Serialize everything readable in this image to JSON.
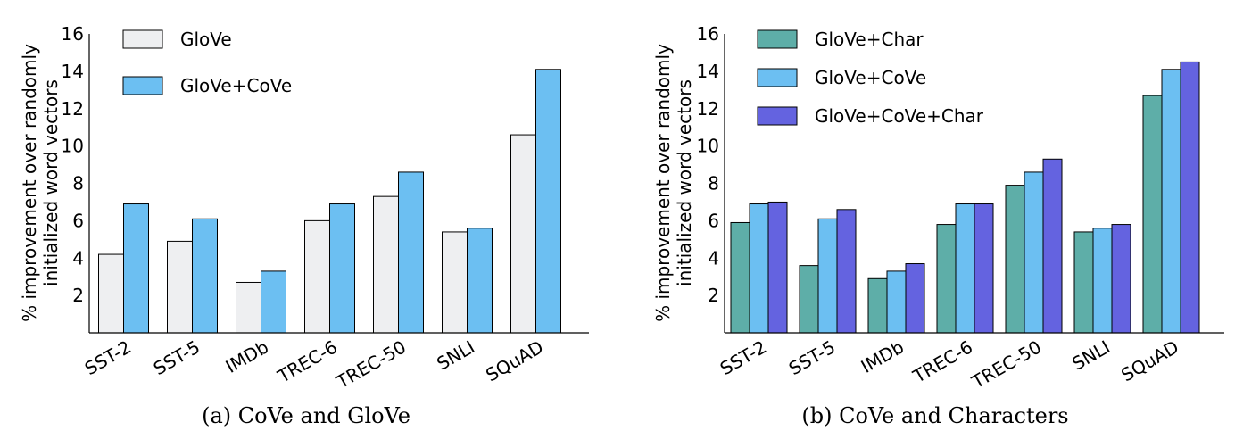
{
  "chart_data": [
    {
      "type": "bar",
      "caption": "(a) CoVe and GloVe",
      "ylabel_line1": "% improvement over randomly",
      "ylabel_line2": "initialized word vectors",
      "ylim": [
        0,
        16
      ],
      "yticks": [
        2,
        4,
        6,
        8,
        10,
        12,
        14,
        16
      ],
      "categories": [
        "SST-2",
        "SST-5",
        "IMDb",
        "TREC-6",
        "TREC-50",
        "SNLI",
        "SQuAD"
      ],
      "legend_position": "top-left",
      "series": [
        {
          "name": "GloVe",
          "color": "#eeeff1",
          "values": [
            4.2,
            4.9,
            2.7,
            6.0,
            7.3,
            5.4,
            10.6
          ]
        },
        {
          "name": "GloVe+CoVe",
          "color": "#6cbff2",
          "values": [
            6.9,
            6.1,
            3.3,
            6.9,
            8.6,
            5.6,
            14.1
          ]
        }
      ]
    },
    {
      "type": "bar",
      "caption": "(b) CoVe and Characters",
      "ylabel_line1": "% improvement over randomly",
      "ylabel_line2": "initialized word vectors",
      "ylim": [
        0,
        16
      ],
      "yticks": [
        2,
        4,
        6,
        8,
        10,
        12,
        14,
        16
      ],
      "categories": [
        "SST-2",
        "SST-5",
        "IMDb",
        "TREC-6",
        "TREC-50",
        "SNLI",
        "SQuAD"
      ],
      "legend_position": "top-left",
      "series": [
        {
          "name": "GloVe+Char",
          "color": "#5eaea8",
          "values": [
            5.9,
            3.6,
            2.9,
            5.8,
            7.9,
            5.4,
            12.7
          ]
        },
        {
          "name": "GloVe+CoVe",
          "color": "#6cbff2",
          "values": [
            6.9,
            6.1,
            3.3,
            6.9,
            8.6,
            5.6,
            14.1
          ]
        },
        {
          "name": "GloVe+CoVe+Char",
          "color": "#6463e0",
          "values": [
            7.0,
            6.6,
            3.7,
            6.9,
            9.3,
            5.8,
            14.5
          ]
        }
      ]
    }
  ]
}
